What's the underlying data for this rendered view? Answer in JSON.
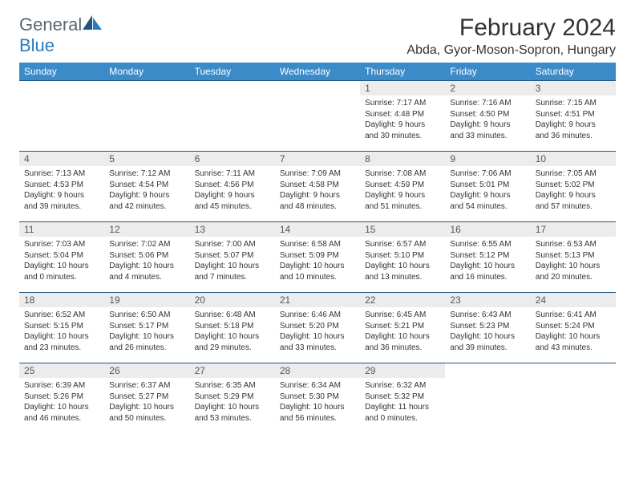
{
  "logo": {
    "text1": "General",
    "text2": "Blue"
  },
  "title": "February 2024",
  "location": "Abda, Gyor-Moson-Sopron, Hungary",
  "colors": {
    "header_bg": "#3b8bc9",
    "header_text": "#ffffff",
    "cell_border": "#1f5582",
    "daynum_bg": "#ececec",
    "logo_blue": "#2b7bbf",
    "logo_gray": "#5b6770"
  },
  "weekdays": [
    "Sunday",
    "Monday",
    "Tuesday",
    "Wednesday",
    "Thursday",
    "Friday",
    "Saturday"
  ],
  "weeks": [
    [
      null,
      null,
      null,
      null,
      {
        "n": "1",
        "sr": "Sunrise: 7:17 AM",
        "ss": "Sunset: 4:48 PM",
        "d1": "Daylight: 9 hours",
        "d2": "and 30 minutes."
      },
      {
        "n": "2",
        "sr": "Sunrise: 7:16 AM",
        "ss": "Sunset: 4:50 PM",
        "d1": "Daylight: 9 hours",
        "d2": "and 33 minutes."
      },
      {
        "n": "3",
        "sr": "Sunrise: 7:15 AM",
        "ss": "Sunset: 4:51 PM",
        "d1": "Daylight: 9 hours",
        "d2": "and 36 minutes."
      }
    ],
    [
      {
        "n": "4",
        "sr": "Sunrise: 7:13 AM",
        "ss": "Sunset: 4:53 PM",
        "d1": "Daylight: 9 hours",
        "d2": "and 39 minutes."
      },
      {
        "n": "5",
        "sr": "Sunrise: 7:12 AM",
        "ss": "Sunset: 4:54 PM",
        "d1": "Daylight: 9 hours",
        "d2": "and 42 minutes."
      },
      {
        "n": "6",
        "sr": "Sunrise: 7:11 AM",
        "ss": "Sunset: 4:56 PM",
        "d1": "Daylight: 9 hours",
        "d2": "and 45 minutes."
      },
      {
        "n": "7",
        "sr": "Sunrise: 7:09 AM",
        "ss": "Sunset: 4:58 PM",
        "d1": "Daylight: 9 hours",
        "d2": "and 48 minutes."
      },
      {
        "n": "8",
        "sr": "Sunrise: 7:08 AM",
        "ss": "Sunset: 4:59 PM",
        "d1": "Daylight: 9 hours",
        "d2": "and 51 minutes."
      },
      {
        "n": "9",
        "sr": "Sunrise: 7:06 AM",
        "ss": "Sunset: 5:01 PM",
        "d1": "Daylight: 9 hours",
        "d2": "and 54 minutes."
      },
      {
        "n": "10",
        "sr": "Sunrise: 7:05 AM",
        "ss": "Sunset: 5:02 PM",
        "d1": "Daylight: 9 hours",
        "d2": "and 57 minutes."
      }
    ],
    [
      {
        "n": "11",
        "sr": "Sunrise: 7:03 AM",
        "ss": "Sunset: 5:04 PM",
        "d1": "Daylight: 10 hours",
        "d2": "and 0 minutes."
      },
      {
        "n": "12",
        "sr": "Sunrise: 7:02 AM",
        "ss": "Sunset: 5:06 PM",
        "d1": "Daylight: 10 hours",
        "d2": "and 4 minutes."
      },
      {
        "n": "13",
        "sr": "Sunrise: 7:00 AM",
        "ss": "Sunset: 5:07 PM",
        "d1": "Daylight: 10 hours",
        "d2": "and 7 minutes."
      },
      {
        "n": "14",
        "sr": "Sunrise: 6:58 AM",
        "ss": "Sunset: 5:09 PM",
        "d1": "Daylight: 10 hours",
        "d2": "and 10 minutes."
      },
      {
        "n": "15",
        "sr": "Sunrise: 6:57 AM",
        "ss": "Sunset: 5:10 PM",
        "d1": "Daylight: 10 hours",
        "d2": "and 13 minutes."
      },
      {
        "n": "16",
        "sr": "Sunrise: 6:55 AM",
        "ss": "Sunset: 5:12 PM",
        "d1": "Daylight: 10 hours",
        "d2": "and 16 minutes."
      },
      {
        "n": "17",
        "sr": "Sunrise: 6:53 AM",
        "ss": "Sunset: 5:13 PM",
        "d1": "Daylight: 10 hours",
        "d2": "and 20 minutes."
      }
    ],
    [
      {
        "n": "18",
        "sr": "Sunrise: 6:52 AM",
        "ss": "Sunset: 5:15 PM",
        "d1": "Daylight: 10 hours",
        "d2": "and 23 minutes."
      },
      {
        "n": "19",
        "sr": "Sunrise: 6:50 AM",
        "ss": "Sunset: 5:17 PM",
        "d1": "Daylight: 10 hours",
        "d2": "and 26 minutes."
      },
      {
        "n": "20",
        "sr": "Sunrise: 6:48 AM",
        "ss": "Sunset: 5:18 PM",
        "d1": "Daylight: 10 hours",
        "d2": "and 29 minutes."
      },
      {
        "n": "21",
        "sr": "Sunrise: 6:46 AM",
        "ss": "Sunset: 5:20 PM",
        "d1": "Daylight: 10 hours",
        "d2": "and 33 minutes."
      },
      {
        "n": "22",
        "sr": "Sunrise: 6:45 AM",
        "ss": "Sunset: 5:21 PM",
        "d1": "Daylight: 10 hours",
        "d2": "and 36 minutes."
      },
      {
        "n": "23",
        "sr": "Sunrise: 6:43 AM",
        "ss": "Sunset: 5:23 PM",
        "d1": "Daylight: 10 hours",
        "d2": "and 39 minutes."
      },
      {
        "n": "24",
        "sr": "Sunrise: 6:41 AM",
        "ss": "Sunset: 5:24 PM",
        "d1": "Daylight: 10 hours",
        "d2": "and 43 minutes."
      }
    ],
    [
      {
        "n": "25",
        "sr": "Sunrise: 6:39 AM",
        "ss": "Sunset: 5:26 PM",
        "d1": "Daylight: 10 hours",
        "d2": "and 46 minutes."
      },
      {
        "n": "26",
        "sr": "Sunrise: 6:37 AM",
        "ss": "Sunset: 5:27 PM",
        "d1": "Daylight: 10 hours",
        "d2": "and 50 minutes."
      },
      {
        "n": "27",
        "sr": "Sunrise: 6:35 AM",
        "ss": "Sunset: 5:29 PM",
        "d1": "Daylight: 10 hours",
        "d2": "and 53 minutes."
      },
      {
        "n": "28",
        "sr": "Sunrise: 6:34 AM",
        "ss": "Sunset: 5:30 PM",
        "d1": "Daylight: 10 hours",
        "d2": "and 56 minutes."
      },
      {
        "n": "29",
        "sr": "Sunrise: 6:32 AM",
        "ss": "Sunset: 5:32 PM",
        "d1": "Daylight: 11 hours",
        "d2": "and 0 minutes."
      },
      null,
      null
    ]
  ]
}
